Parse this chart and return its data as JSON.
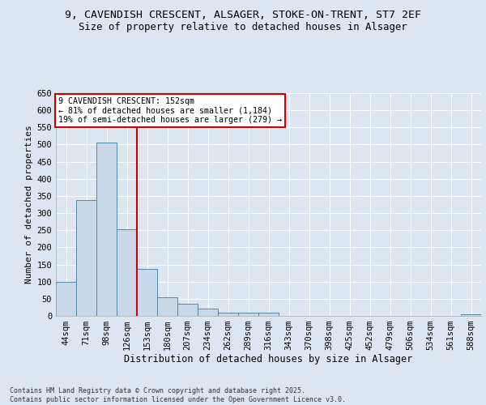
{
  "title_line1": "9, CAVENDISH CRESCENT, ALSAGER, STOKE-ON-TRENT, ST7 2EF",
  "title_line2": "Size of property relative to detached houses in Alsager",
  "xlabel": "Distribution of detached houses by size in Alsager",
  "ylabel": "Number of detached properties",
  "categories": [
    "44sqm",
    "71sqm",
    "98sqm",
    "126sqm",
    "153sqm",
    "180sqm",
    "207sqm",
    "234sqm",
    "262sqm",
    "289sqm",
    "316sqm",
    "343sqm",
    "370sqm",
    "398sqm",
    "425sqm",
    "452sqm",
    "479sqm",
    "506sqm",
    "534sqm",
    "561sqm",
    "588sqm"
  ],
  "values": [
    100,
    338,
    507,
    254,
    137,
    55,
    36,
    22,
    10,
    10,
    10,
    1,
    0,
    0,
    0,
    0,
    0,
    0,
    0,
    0,
    4
  ],
  "bar_color": "#c8d8e8",
  "bar_edge_color": "#5588aa",
  "vline_position": 3.5,
  "vline_color": "#cc0000",
  "annotation_text": "9 CAVENDISH CRESCENT: 152sqm\n← 81% of detached houses are smaller (1,184)\n19% of semi-detached houses are larger (279) →",
  "annotation_box_edgecolor": "#cc0000",
  "ylim_max": 650,
  "yticks": [
    0,
    50,
    100,
    150,
    200,
    250,
    300,
    350,
    400,
    450,
    500,
    550,
    600,
    650
  ],
  "background_color": "#dde6f0",
  "grid_color": "#ffffff",
  "footer_line1": "Contains HM Land Registry data © Crown copyright and database right 2025.",
  "footer_line2": "Contains public sector information licensed under the Open Government Licence v3.0."
}
